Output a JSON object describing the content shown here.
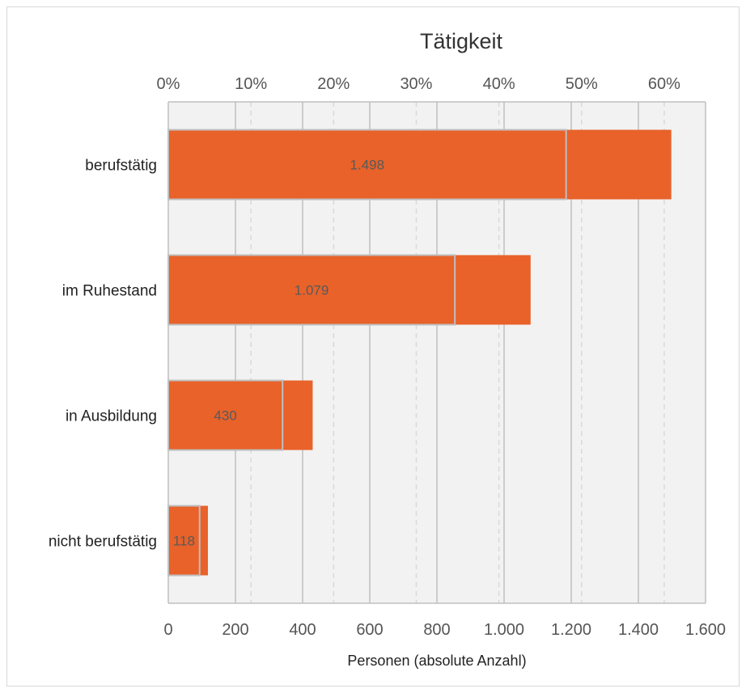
{
  "chart_data": {
    "type": "bar",
    "orientation": "horizontal",
    "title": "Tätigkeit",
    "categories": [
      "berufstätig",
      "im Ruhestand",
      "in Ausbildung",
      "nicht berufstätig"
    ],
    "series": [
      {
        "values": [
          1498,
          1079,
          430,
          118
        ],
        "axis": "primary",
        "color": "#E8622A"
      },
      {
        "values": [
          0.4813,
          0.3467,
          0.1382,
          0.0379
        ],
        "axis": "secondary",
        "color": "#E8622A"
      }
    ],
    "data_labels": [
      "1.498",
      "1.079",
      "430",
      "118"
    ],
    "xlabel": "Personen (absolute Anzahl)",
    "x_primary": {
      "lim": [
        0,
        1600
      ],
      "ticks": [
        0,
        200,
        400,
        600,
        800,
        1000,
        1200,
        1400,
        1600
      ],
      "tick_labels": [
        "0",
        "200",
        "400",
        "600",
        "800",
        "1.000",
        "1.200",
        "1.400",
        "1.600"
      ]
    },
    "x_secondary": {
      "lim": [
        0,
        0.65
      ],
      "ticks": [
        0,
        0.1,
        0.2,
        0.3,
        0.4,
        0.5,
        0.6
      ],
      "tick_labels": [
        "0%",
        "10%",
        "20%",
        "30%",
        "40%",
        "50%",
        "60%"
      ]
    },
    "grid": true,
    "legend": "none",
    "colors": {
      "bar": "#E8622A",
      "plot_bg": "#F2F2F2",
      "grid": "#BFBFBF",
      "grid_dashed": "#D9D9D9",
      "overlay_edge": "#BFBFBF"
    }
  }
}
